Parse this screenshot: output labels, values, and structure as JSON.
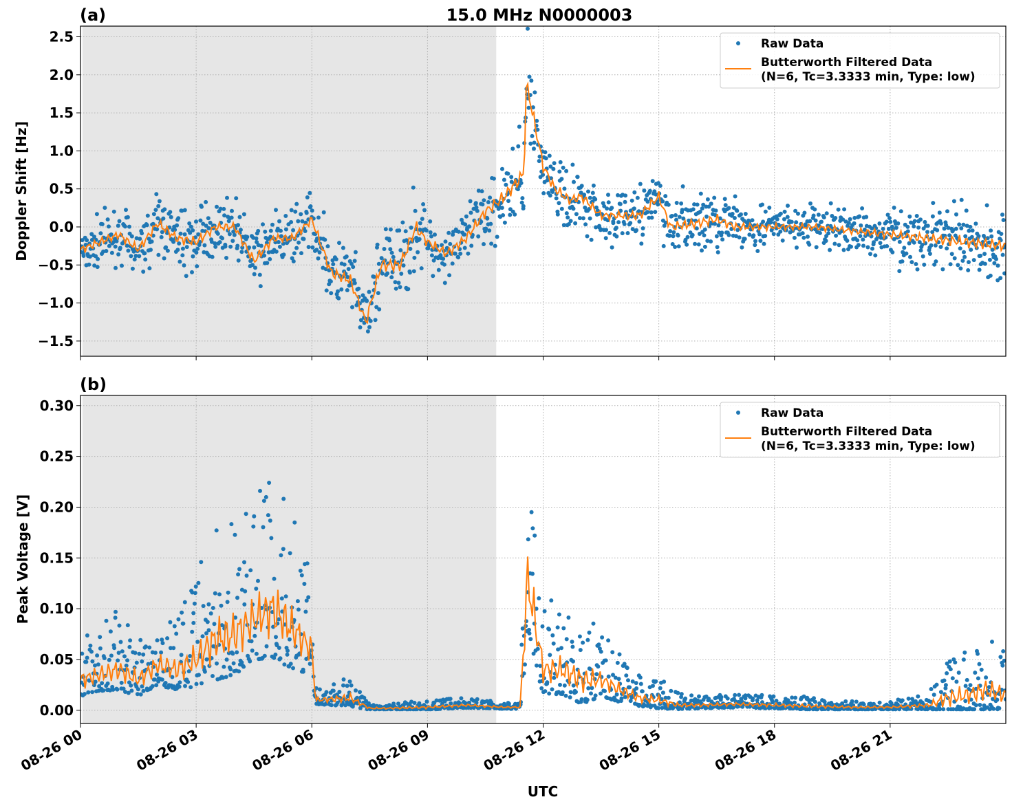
{
  "title": "15.0 MHz N0000003",
  "colors": {
    "raw": "#1f77b4",
    "filtered": "#ff7f0e",
    "shade": "#e6e6e6"
  },
  "chart_data": [
    {
      "type": "scatter+line",
      "panel_label": "(a)",
      "ylabel": "Doppler Shift [Hz]",
      "xlabel": "",
      "xlim": [
        "08-26 00:00",
        "08-27 00:00"
      ],
      "ylim": [
        -1.7,
        2.64
      ],
      "yticks": [
        -1.5,
        -1.0,
        -0.5,
        0.0,
        0.5,
        1.0,
        1.5,
        2.0,
        2.5
      ],
      "ytick_labels": [
        "−1.5",
        "−1.0",
        "−0.5",
        "0.0",
        "0.5",
        "1.0",
        "1.5",
        "2.0",
        "2.5"
      ],
      "xtick_labels": [
        "08-26 00",
        "08-26 03",
        "08-26 06",
        "08-26 09",
        "08-26 12",
        "08-26 15",
        "08-26 18",
        "08-26 21"
      ],
      "grid": true,
      "shaded_interval": [
        "08-26 00:03",
        "08-26 10:47"
      ],
      "legend": {
        "placement": "top-right",
        "entries": [
          "Raw Data",
          "Butterworth Filtered Data",
          "(N=6, Tc=3.3333 min, Type: low)"
        ]
      },
      "series": [
        {
          "name": "Butterworth Filtered Data (N=6, Tc=3.3333 min, Type: low)",
          "type": "line",
          "x": [
            "00:00",
            "00:30",
            "01:00",
            "01:30",
            "02:00",
            "02:30",
            "03:00",
            "03:30",
            "04:00",
            "04:30",
            "05:00",
            "05:30",
            "06:00",
            "06:30",
            "07:00",
            "07:24",
            "07:48",
            "08:18",
            "08:42",
            "09:00",
            "09:30",
            "10:00",
            "10:30",
            "11:00",
            "11:30",
            "11:34",
            "12:00",
            "12:18",
            "12:42",
            "13:00",
            "13:30",
            "14:00",
            "14:30",
            "15:00",
            "15:18",
            "16:00",
            "16:30",
            "17:00",
            "18:00",
            "19:00",
            "20:00",
            "21:00",
            "22:00",
            "23:00",
            "24:00"
          ],
          "y": [
            -0.3,
            -0.2,
            -0.1,
            -0.3,
            0.05,
            -0.15,
            -0.2,
            0.0,
            0.0,
            -0.45,
            -0.15,
            -0.15,
            0.1,
            -0.6,
            -0.7,
            -1.25,
            -0.5,
            -0.5,
            0.0,
            -0.2,
            -0.35,
            -0.15,
            0.2,
            0.4,
            0.7,
            1.9,
            0.8,
            0.5,
            0.35,
            0.4,
            0.15,
            0.15,
            0.15,
            0.4,
            0.0,
            0.05,
            0.1,
            0.0,
            0.0,
            0.0,
            -0.05,
            -0.1,
            -0.15,
            -0.2,
            -0.25
          ]
        },
        {
          "name": "Raw Data",
          "type": "scatter",
          "raw_spread": [
            0.25,
            0.25,
            0.25,
            0.25,
            0.3,
            0.3,
            0.3,
            0.25,
            0.25,
            0.3,
            0.25,
            0.25,
            0.25,
            0.35,
            0.35,
            0.35,
            0.4,
            0.4,
            0.4,
            0.3,
            0.3,
            0.3,
            0.35,
            0.4,
            0.45,
            0.45,
            0.35,
            0.3,
            0.3,
            0.3,
            0.25,
            0.25,
            0.3,
            0.3,
            0.3,
            0.3,
            0.3,
            0.25,
            0.2,
            0.2,
            0.2,
            0.25,
            0.3,
            0.35,
            0.35
          ]
        }
      ]
    },
    {
      "type": "scatter+line",
      "panel_label": "(b)",
      "ylabel": "Peak Voltage [V]",
      "xlabel": "UTC",
      "xlim": [
        "08-26 00:00",
        "08-27 00:00"
      ],
      "ylim": [
        -0.013,
        0.31
      ],
      "yticks": [
        0.0,
        0.05,
        0.1,
        0.15,
        0.2,
        0.25,
        0.3
      ],
      "ytick_labels": [
        "0.00",
        "0.05",
        "0.10",
        "0.15",
        "0.20",
        "0.25",
        "0.30"
      ],
      "xtick_labels": [
        "08-26 00",
        "08-26 03",
        "08-26 06",
        "08-26 09",
        "08-26 12",
        "08-26 15",
        "08-26 18",
        "08-26 21"
      ],
      "grid": true,
      "shaded_interval": [
        "08-26 00:03",
        "08-26 10:47"
      ],
      "legend": {
        "placement": "top-right",
        "entries": [
          "Raw Data",
          "Butterworth Filtered Data",
          "(N=6, Tc=3.3333 min, Type: low)"
        ]
      },
      "series": [
        {
          "name": "Butterworth Filtered Data (N=6, Tc=3.3333 min, Type: low)",
          "type": "line",
          "x": [
            "00:00",
            "00:30",
            "01:00",
            "01:30",
            "02:00",
            "02:30",
            "03:00",
            "03:30",
            "04:00",
            "04:30",
            "05:00",
            "05:30",
            "06:00",
            "06:06",
            "07:00",
            "07:30",
            "08:00",
            "09:00",
            "10:00",
            "11:00",
            "11:24",
            "11:36",
            "12:00",
            "12:30",
            "13:00",
            "13:30",
            "14:00",
            "14:30",
            "15:00",
            "15:30",
            "16:00",
            "17:00",
            "18:00",
            "19:00",
            "20:00",
            "21:00",
            "22:00",
            "22:30",
            "23:00",
            "23:30",
            "24:00"
          ],
          "y": [
            0.03,
            0.035,
            0.04,
            0.03,
            0.045,
            0.04,
            0.05,
            0.07,
            0.075,
            0.09,
            0.1,
            0.08,
            0.06,
            0.01,
            0.012,
            0.002,
            0.002,
            0.003,
            0.005,
            0.003,
            0.003,
            0.13,
            0.04,
            0.04,
            0.03,
            0.03,
            0.02,
            0.012,
            0.01,
            0.005,
            0.005,
            0.006,
            0.005,
            0.004,
            0.003,
            0.003,
            0.005,
            0.012,
            0.015,
            0.02,
            0.015
          ]
        },
        {
          "name": "Raw Data",
          "type": "scatter",
          "raw_spread": [
            0.04,
            0.04,
            0.05,
            0.04,
            0.05,
            0.05,
            0.07,
            0.1,
            0.1,
            0.1,
            0.12,
            0.1,
            0.06,
            0.01,
            0.02,
            0.004,
            0.004,
            0.006,
            0.006,
            0.004,
            0.004,
            0.15,
            0.06,
            0.06,
            0.06,
            0.04,
            0.03,
            0.02,
            0.02,
            0.01,
            0.008,
            0.008,
            0.008,
            0.008,
            0.005,
            0.005,
            0.01,
            0.04,
            0.04,
            0.05,
            0.04
          ]
        }
      ]
    }
  ]
}
